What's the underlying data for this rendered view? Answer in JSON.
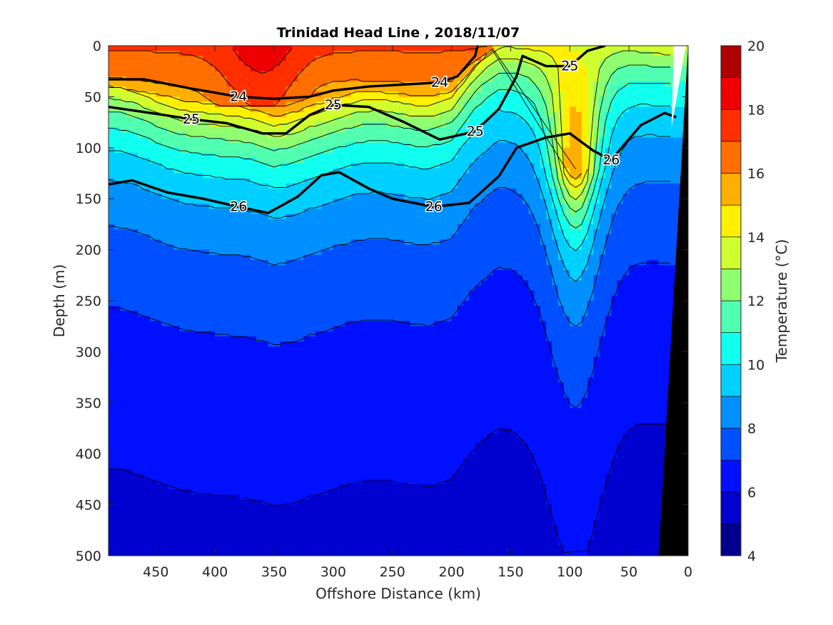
{
  "chart_data": {
    "type": "heatmap",
    "subtype": "filled-contour section",
    "title": "Trinidad Head Line , 2018/11/07",
    "xlabel": "Offshore Distance (km)",
    "ylabel": "Depth (m)",
    "xlim": [
      490,
      0
    ],
    "ylim": [
      0,
      500
    ],
    "y_reversed": true,
    "x_reversed": true,
    "x_ticks": [
      450,
      400,
      350,
      300,
      250,
      200,
      150,
      100,
      50,
      0
    ],
    "y_ticks": [
      0,
      50,
      100,
      150,
      200,
      250,
      300,
      350,
      400,
      450,
      500
    ],
    "colorbar": {
      "label": "Temperature (°C)",
      "min": 4,
      "max": 20,
      "ticks": [
        4,
        6,
        8,
        10,
        12,
        14,
        16,
        18,
        20
      ],
      "levels": [
        4,
        5,
        6,
        7,
        8,
        9,
        10,
        11,
        12,
        13,
        14,
        15,
        16,
        17,
        18,
        19,
        20
      ],
      "colors": [
        "#00008f",
        "#0000cf",
        "#0010ff",
        "#0050ff",
        "#0090ff",
        "#00d0ff",
        "#10ffef",
        "#50ffaf",
        "#90ff6f",
        "#d0ff2f",
        "#ffef00",
        "#ffaf00",
        "#ff6f00",
        "#ff2f00",
        "#ef0000",
        "#af0000"
      ]
    },
    "isotherm_levels": [
      6,
      7,
      8,
      9,
      10,
      11,
      12,
      13,
      14,
      15,
      16,
      17,
      18
    ],
    "sigma_contours": [
      {
        "name": "24",
        "labels": [
          "24",
          "24"
        ],
        "points": [
          [
            490,
            33
          ],
          [
            460,
            33
          ],
          [
            420,
            42
          ],
          [
            380,
            50
          ],
          [
            350,
            52
          ],
          [
            320,
            50
          ],
          [
            300,
            44
          ],
          [
            270,
            40
          ],
          [
            240,
            38
          ],
          [
            210,
            36
          ],
          [
            195,
            30
          ],
          [
            180,
            10
          ],
          [
            178,
            0
          ]
        ]
      },
      {
        "name": "25",
        "labels": [
          "25",
          "25",
          "25",
          "25"
        ],
        "points": [
          [
            490,
            60
          ],
          [
            460,
            65
          ],
          [
            420,
            72
          ],
          [
            390,
            76
          ],
          [
            360,
            86
          ],
          [
            340,
            86
          ],
          [
            320,
            68
          ],
          [
            300,
            58
          ],
          [
            270,
            60
          ],
          [
            240,
            75
          ],
          [
            210,
            92
          ],
          [
            180,
            84
          ],
          [
            160,
            62
          ],
          [
            145,
            30
          ],
          [
            140,
            10
          ],
          [
            120,
            20
          ],
          [
            100,
            20
          ],
          [
            85,
            5
          ],
          [
            70,
            0
          ]
        ]
      },
      {
        "name": "26",
        "labels": [
          "26",
          "26",
          "26"
        ],
        "points": [
          [
            490,
            136
          ],
          [
            470,
            132
          ],
          [
            440,
            144
          ],
          [
            410,
            150
          ],
          [
            380,
            158
          ],
          [
            355,
            164
          ],
          [
            330,
            148
          ],
          [
            310,
            127
          ],
          [
            295,
            124
          ],
          [
            270,
            140
          ],
          [
            250,
            150
          ],
          [
            215,
            158
          ],
          [
            185,
            154
          ],
          [
            160,
            128
          ],
          [
            145,
            100
          ],
          [
            120,
            90
          ],
          [
            100,
            86
          ],
          [
            80,
            103
          ],
          [
            65,
            112
          ],
          [
            40,
            78
          ],
          [
            20,
            66
          ],
          [
            10,
            70
          ]
        ]
      }
    ],
    "bathymetry": {
      "label": "seafloor",
      "color": "#000000",
      "shelf_edge_points": [
        [
          25,
          500
        ],
        [
          0,
          0
        ]
      ]
    }
  }
}
